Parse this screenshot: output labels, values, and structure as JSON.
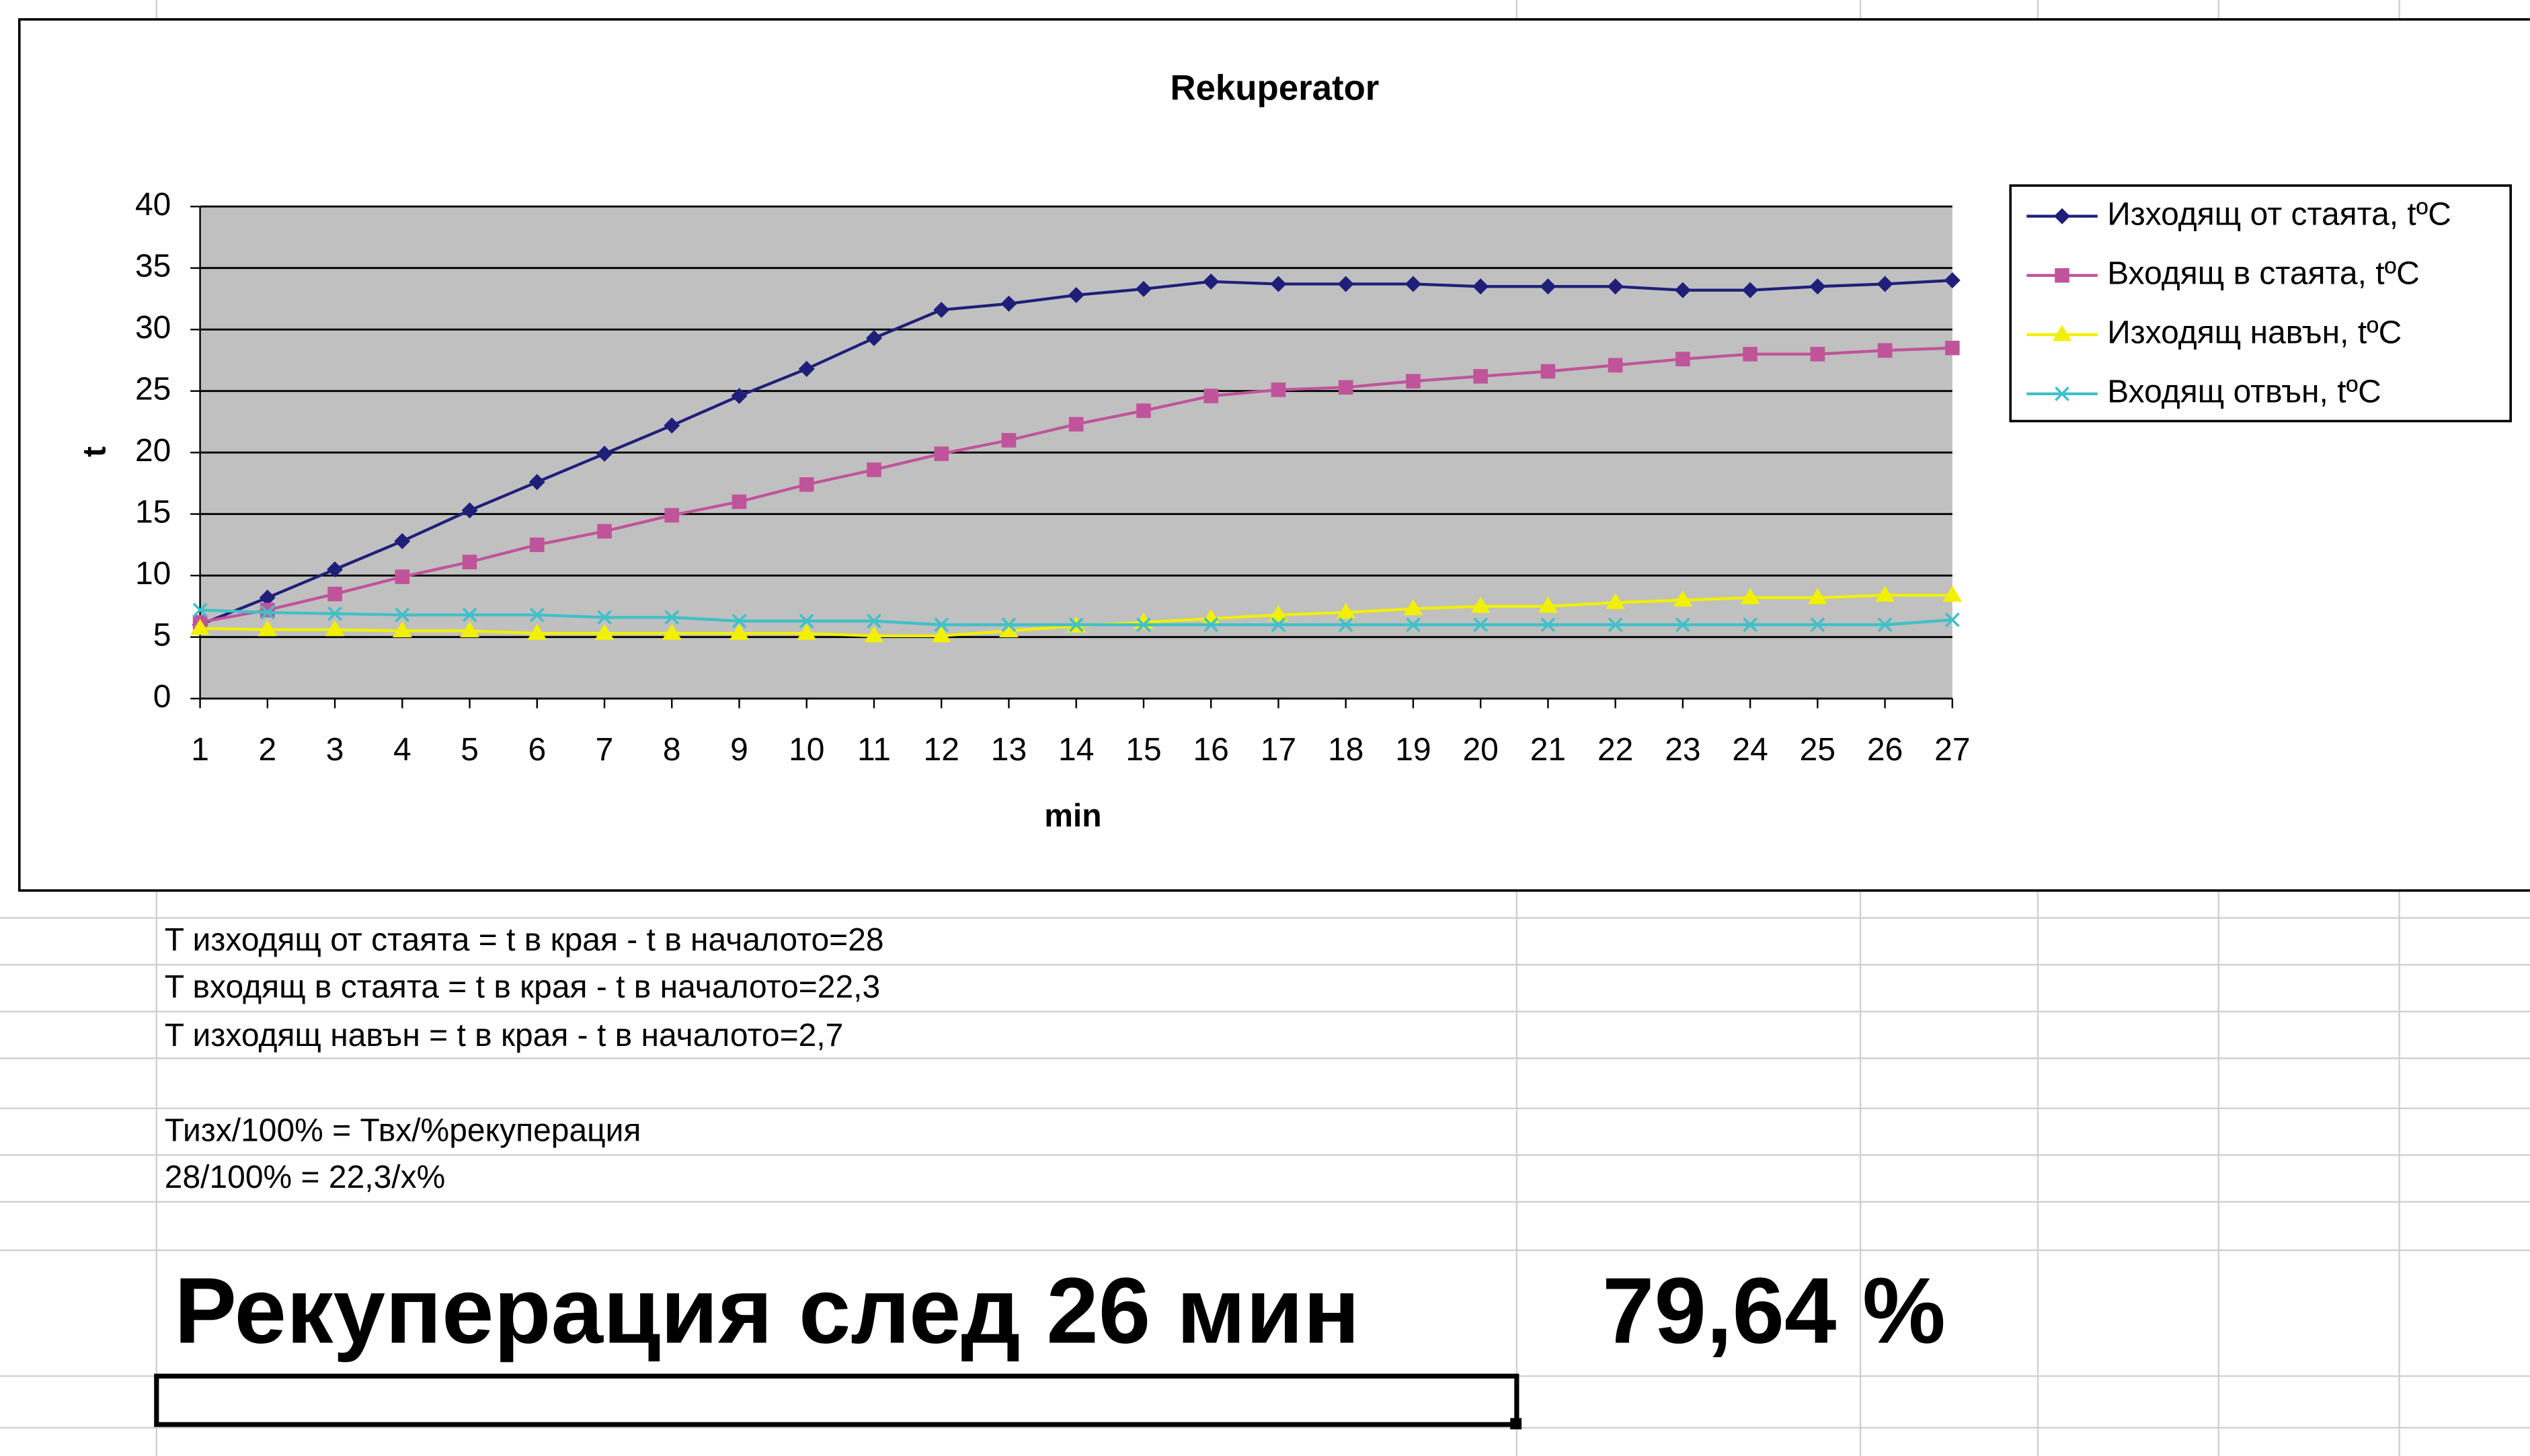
{
  "chart_data": {
    "type": "line",
    "title": "Rekuperator",
    "x_label": "min",
    "y_label": "t",
    "categories": [
      "1",
      "2",
      "3",
      "4",
      "5",
      "6",
      "7",
      "8",
      "9",
      "10",
      "11",
      "12",
      "13",
      "14",
      "15",
      "16",
      "17",
      "18",
      "19",
      "20",
      "21",
      "22",
      "23",
      "24",
      "25",
      "26",
      "27"
    ],
    "ylim": [
      0,
      40
    ],
    "yticks": [
      0,
      5,
      10,
      15,
      20,
      25,
      30,
      35,
      40
    ],
    "grid": true,
    "plot_background": "#c0c0c0",
    "legend": "right",
    "series": [
      {
        "name": "Изходящ от стаята, tºC",
        "color": "#1f1f7a",
        "marker": "diamond",
        "values": [
          6,
          8.2,
          10.5,
          12.8,
          15.3,
          17.6,
          19.9,
          22.2,
          24.6,
          26.8,
          29.3,
          31.6,
          32.1,
          32.8,
          33.3,
          33.9,
          33.7,
          33.7,
          33.7,
          33.5,
          33.5,
          33.5,
          33.2,
          33.2,
          33.5,
          33.7,
          34
        ]
      },
      {
        "name": "Входящ в стаята, tºC",
        "color": "#c0549a",
        "marker": "square",
        "values": [
          6.2,
          7.2,
          8.5,
          9.9,
          11.1,
          12.5,
          13.6,
          14.9,
          16,
          17.4,
          18.6,
          19.9,
          21,
          22.3,
          23.4,
          24.6,
          25.1,
          25.3,
          25.8,
          26.2,
          26.6,
          27.1,
          27.6,
          28,
          28,
          28.3,
          28.5
        ]
      },
      {
        "name": "Изходящ навън, tºC",
        "color": "#f0f000",
        "marker": "triangle",
        "values": [
          5.7,
          5.6,
          5.6,
          5.5,
          5.5,
          5.3,
          5.3,
          5.3,
          5.3,
          5.3,
          5.1,
          5.1,
          5.5,
          5.9,
          6.2,
          6.5,
          6.8,
          7,
          7.3,
          7.5,
          7.5,
          7.8,
          8,
          8.2,
          8.2,
          8.4,
          8.4
        ]
      },
      {
        "name": "Входящ отвън, tºC",
        "color": "#40c0c8",
        "marker": "x",
        "values": [
          7.2,
          7,
          6.9,
          6.8,
          6.8,
          6.8,
          6.6,
          6.6,
          6.3,
          6.3,
          6.3,
          6,
          6,
          6,
          6,
          6,
          6,
          6,
          6,
          6,
          6,
          6,
          6,
          6,
          6,
          6,
          6.4
        ]
      }
    ]
  },
  "notes": [
    "T изходящ от стаята = t в края - t в началото=28",
    "T входящ в стаята = t в края - t в началото=22,3",
    "T изходящ навън = t в края - t в началото=2,7",
    "Тизх/100% = Твх/%рекуперация",
    "28/100% = 22,3/x%"
  ],
  "result": {
    "label": "Рекуперация след 26 мин",
    "value": "79,64 %"
  }
}
